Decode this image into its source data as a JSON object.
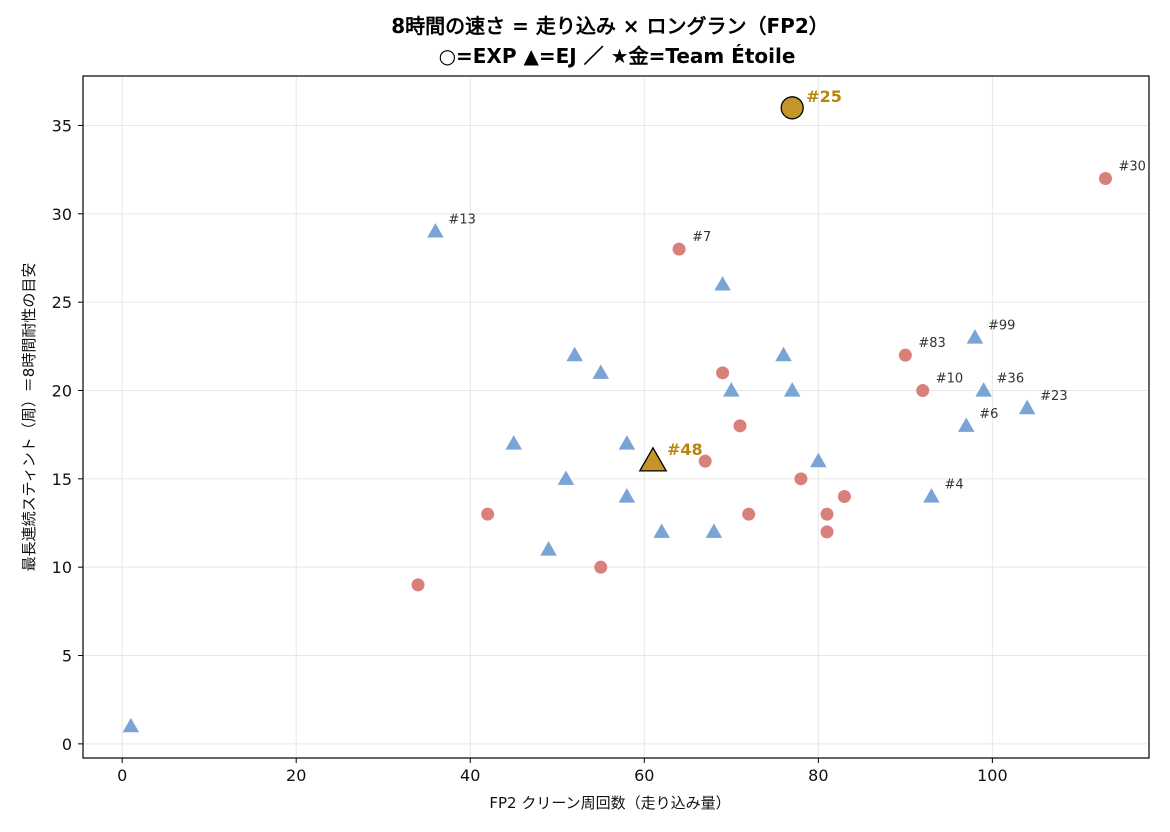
{
  "chart_data": {
    "type": "scatter",
    "title_line1": "8時間の速さ = 走り込み × ロングラン（FP2）",
    "title_line2": "○=EXP ▲=EJ ／ ★金=Team Étoile",
    "xlabel": "FP2 クリーン周回数（走り込み量）",
    "ylabel": "最長連続スティント（周）＝8時間耐性の目安",
    "xlim": [
      -4.5,
      118
    ],
    "ylim": [
      -0.8,
      37.8
    ],
    "xticks": [
      0,
      20,
      40,
      60,
      80,
      100
    ],
    "yticks": [
      0,
      5,
      10,
      15,
      20,
      25,
      30,
      35
    ],
    "grid": true,
    "colors": {
      "EXP": "#d9807a",
      "EJ": "#7aa3d6",
      "highlight": "#c4962a",
      "highlight_text": "#b8860b"
    },
    "series": [
      {
        "name": "EXP",
        "marker": "circle",
        "points": [
          {
            "x": 113,
            "y": 32,
            "label": "#30"
          },
          {
            "x": 64,
            "y": 28,
            "label": "#7"
          },
          {
            "x": 90,
            "y": 22,
            "label": "#83"
          },
          {
            "x": 92,
            "y": 20,
            "label": "#10"
          },
          {
            "x": 69,
            "y": 21,
            "label": ""
          },
          {
            "x": 71,
            "y": 18,
            "label": ""
          },
          {
            "x": 67,
            "y": 16,
            "label": ""
          },
          {
            "x": 78,
            "y": 15,
            "label": ""
          },
          {
            "x": 83,
            "y": 14,
            "label": ""
          },
          {
            "x": 81,
            "y": 13,
            "label": ""
          },
          {
            "x": 81,
            "y": 12,
            "label": ""
          },
          {
            "x": 72,
            "y": 13,
            "label": ""
          },
          {
            "x": 42,
            "y": 13,
            "label": ""
          },
          {
            "x": 55,
            "y": 10,
            "label": ""
          },
          {
            "x": 34,
            "y": 9,
            "label": ""
          }
        ]
      },
      {
        "name": "EJ",
        "marker": "triangle",
        "points": [
          {
            "x": 36,
            "y": 29,
            "label": "#13"
          },
          {
            "x": 98,
            "y": 23,
            "label": "#99"
          },
          {
            "x": 99,
            "y": 20,
            "label": "#36"
          },
          {
            "x": 104,
            "y": 19,
            "label": "#23"
          },
          {
            "x": 97,
            "y": 18,
            "label": "#6"
          },
          {
            "x": 93,
            "y": 14,
            "label": "#4"
          },
          {
            "x": 69,
            "y": 26,
            "label": ""
          },
          {
            "x": 52,
            "y": 22,
            "label": ""
          },
          {
            "x": 55,
            "y": 21,
            "label": ""
          },
          {
            "x": 76,
            "y": 22,
            "label": ""
          },
          {
            "x": 70,
            "y": 20,
            "label": ""
          },
          {
            "x": 77,
            "y": 20,
            "label": ""
          },
          {
            "x": 45,
            "y": 17,
            "label": ""
          },
          {
            "x": 58,
            "y": 17,
            "label": ""
          },
          {
            "x": 80,
            "y": 16,
            "label": ""
          },
          {
            "x": 51,
            "y": 15,
            "label": ""
          },
          {
            "x": 58,
            "y": 14,
            "label": ""
          },
          {
            "x": 49,
            "y": 11,
            "label": ""
          },
          {
            "x": 62,
            "y": 12,
            "label": ""
          },
          {
            "x": 68,
            "y": 12,
            "label": ""
          },
          {
            "x": 1,
            "y": 1,
            "label": ""
          }
        ]
      },
      {
        "name": "Team Étoile",
        "marker": "highlight",
        "points": [
          {
            "x": 77,
            "y": 36,
            "label": "#25",
            "shape": "circle"
          },
          {
            "x": 61,
            "y": 16,
            "label": "#48",
            "shape": "triangle"
          }
        ]
      }
    ]
  }
}
